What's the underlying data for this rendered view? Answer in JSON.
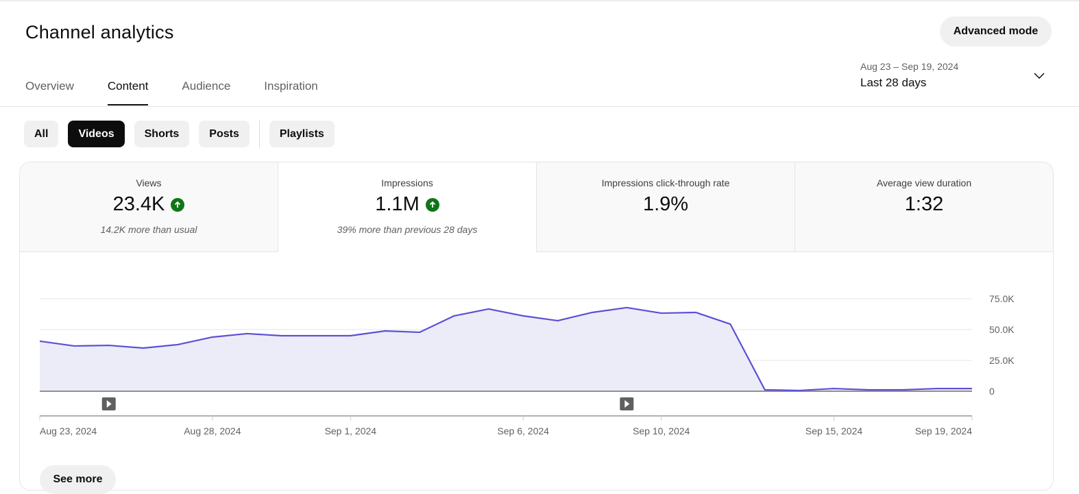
{
  "header": {
    "title": "Channel analytics",
    "advanced_mode": "Advanced mode"
  },
  "tabs": [
    {
      "label": "Overview"
    },
    {
      "label": "Content",
      "active": true
    },
    {
      "label": "Audience"
    },
    {
      "label": "Inspiration"
    }
  ],
  "date_picker": {
    "range": "Aug 23 – Sep 19, 2024",
    "label": "Last 28 days",
    "icon": "chevron-down-icon"
  },
  "filters": [
    {
      "label": "All"
    },
    {
      "label": "Videos",
      "selected": true
    },
    {
      "label": "Shorts"
    },
    {
      "label": "Posts"
    },
    {
      "label": "Playlists"
    }
  ],
  "metrics": [
    {
      "label": "Views",
      "value": "23.4K",
      "trend": "up",
      "note": "14.2K more than usual"
    },
    {
      "label": "Impressions",
      "value": "1.1M",
      "trend": "up",
      "note": "39% more than previous 28 days",
      "selected": true
    },
    {
      "label": "Impressions click-through rate",
      "value": "1.9%"
    },
    {
      "label": "Average view duration",
      "value": "1:32"
    }
  ],
  "colors": {
    "line": "#5b4fd6",
    "fill": "#ececf8",
    "trend_up": "#107516"
  },
  "chart_data": {
    "type": "area",
    "x": [
      "Aug 23",
      "Aug 24",
      "Aug 25",
      "Aug 26",
      "Aug 27",
      "Aug 28",
      "Aug 29",
      "Aug 30",
      "Aug 31",
      "Sep 1",
      "Sep 2",
      "Sep 3",
      "Sep 4",
      "Sep 5",
      "Sep 6",
      "Sep 7",
      "Sep 8",
      "Sep 9",
      "Sep 10",
      "Sep 11",
      "Sep 12",
      "Sep 13",
      "Sep 14",
      "Sep 15",
      "Sep 16",
      "Sep 17",
      "Sep 18",
      "Sep 19"
    ],
    "values": [
      40600,
      36700,
      37200,
      35000,
      37800,
      43900,
      46700,
      45000,
      45000,
      45000,
      48900,
      47800,
      61100,
      66700,
      61100,
      57200,
      63900,
      67800,
      63300,
      63900,
      54400,
      1100,
      600,
      2200,
      1100,
      1100,
      2200,
      2200
    ],
    "ylim": [
      0,
      75000
    ],
    "y_ticks": [
      "0",
      "25.0K",
      "50.0K",
      "75.0K"
    ],
    "x_ticks": [
      {
        "index": 0,
        "label": "Aug 23, 2024"
      },
      {
        "index": 5,
        "label": "Aug 28, 2024"
      },
      {
        "index": 9,
        "label": "Sep 1, 2024"
      },
      {
        "index": 14,
        "label": "Sep 6, 2024"
      },
      {
        "index": 18,
        "label": "Sep 10, 2024"
      },
      {
        "index": 23,
        "label": "Sep 15, 2024"
      },
      {
        "index": 27,
        "label": "Sep 19, 2024"
      }
    ],
    "video_markers": [
      2,
      17
    ],
    "grid": true,
    "y_axis_side": "right"
  },
  "see_more": "See more"
}
